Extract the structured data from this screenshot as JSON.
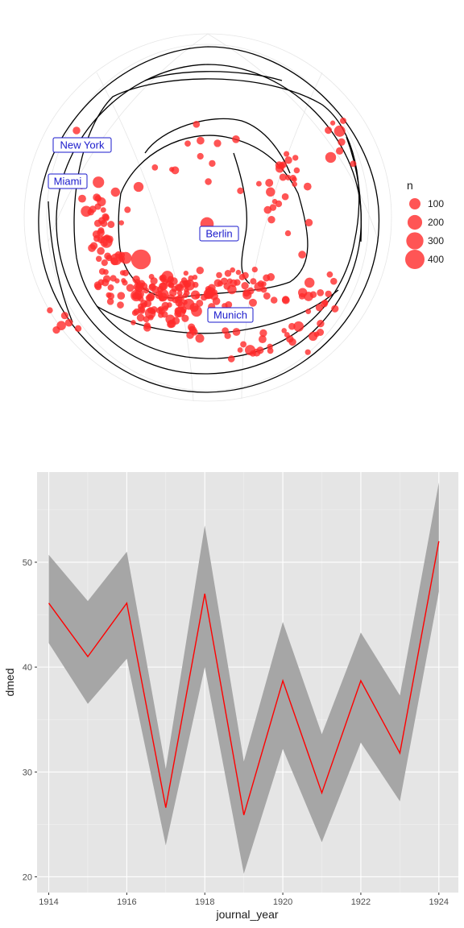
{
  "chart_data": [
    {
      "type": "scatter",
      "subtype": "map-bubble",
      "labels": [
        {
          "name": "New York"
        },
        {
          "name": "Miami"
        },
        {
          "name": "Berlin"
        },
        {
          "name": "Munich"
        }
      ],
      "legend": {
        "title": "n",
        "entries": [
          {
            "label": "100",
            "value": 100
          },
          {
            "label": "200",
            "value": 200
          },
          {
            "label": "300",
            "value": 300
          },
          {
            "label": "400",
            "value": 400
          }
        ],
        "placement": "right"
      },
      "point_color": "#ff2a2a"
    },
    {
      "type": "line",
      "xlabel": "journal_year",
      "ylabel": "dmed",
      "x": [
        1914,
        1915,
        1916,
        1917,
        1918,
        1919,
        1920,
        1921,
        1922,
        1923,
        1924
      ],
      "series": [
        {
          "values": [
            46.1,
            41.0,
            46.1,
            26.6,
            47.0,
            25.9,
            38.7,
            28.0,
            38.7,
            31.8,
            52.0
          ],
          "lower": [
            42.3,
            36.5,
            40.8,
            23.0,
            40.0,
            20.3,
            32.2,
            23.3,
            32.8,
            27.2,
            47.2
          ],
          "upper": [
            50.7,
            46.3,
            51.0,
            30.3,
            53.5,
            31.0,
            44.3,
            33.6,
            43.3,
            37.3,
            57.6
          ],
          "color": "#ff0000",
          "ribbon_color": "#a6a6a6"
        }
      ],
      "xticks": [
        "1914",
        "1916",
        "1918",
        "1920",
        "1922",
        "1924"
      ],
      "yticks": [
        "20",
        "30",
        "40",
        "50"
      ],
      "xlim": [
        1913.7,
        1924.5
      ],
      "ylim": [
        18.5,
        58.6
      ],
      "grid": true,
      "panel_background": "#e5e5e5"
    }
  ]
}
